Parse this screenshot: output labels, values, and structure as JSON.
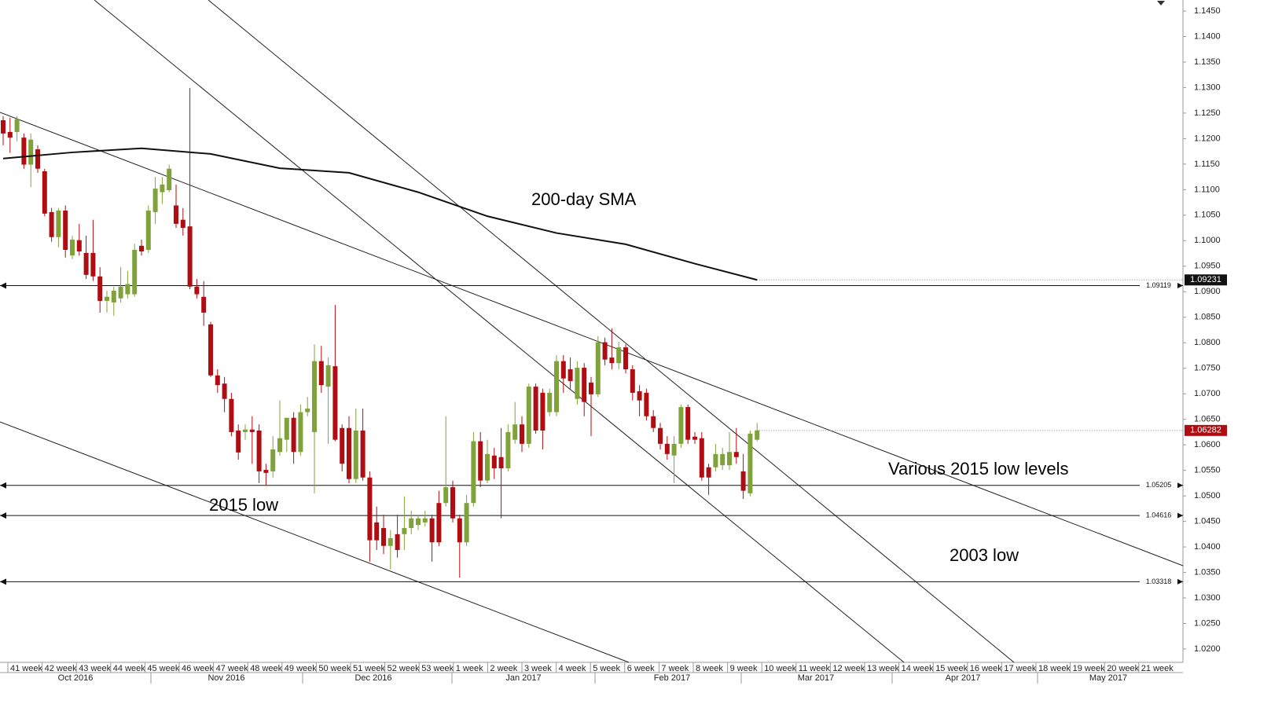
{
  "chart_data": {
    "type": "candlestick",
    "up_color": "#7fa33a",
    "down_color": "#b00d12",
    "open": [
      1.1236,
      1.1213,
      1.1213,
      1.1202,
      1.1149,
      1.1179,
      1.1136,
      1.1056,
      1.1007,
      1.1059,
      1.0971,
      1.1001,
      1.0976,
      1.0976,
      1.093,
      1.0882,
      1.0879,
      1.0887,
      1.0895,
      1.0895,
      1.099,
      1.0982,
      1.1056,
      1.1095,
      1.1099,
      1.1069,
      1.1041,
      1.1028,
      1.091,
      1.089,
      1.0836,
      1.0736,
      1.072,
      1.069,
      1.0628,
      1.0625,
      1.063,
      1.0628,
      1.0551,
      1.0548,
      1.0586,
      1.061,
      1.0653,
      1.0586,
      1.0664,
      1.0625,
      1.0764,
      1.0714,
      1.0754,
      1.0633,
      1.0633,
      1.0533,
      1.0628,
      1.0536,
      1.0448,
      1.0437,
      1.0402,
      1.0425,
      1.0425,
      1.0437,
      1.0443,
      1.0448,
      1.0456,
      1.0486,
      1.0486,
      1.0517,
      1.0456,
      1.0409,
      1.0486,
      1.0607,
      1.053,
      1.0579,
      1.0576,
      1.0554,
      1.061,
      1.064,
      1.0602,
      1.0714,
      1.0702,
      1.0664,
      1.0664,
      1.0764,
      1.0748,
      1.069,
      1.0751,
      1.0722,
      1.0699,
      1.0801,
      1.0771,
      1.076,
      1.0791,
      1.0748,
      1.0705,
      1.0702,
      1.0656,
      1.0633,
      1.0602,
      1.0579,
      1.0602,
      1.0674,
      1.0616,
      1.0613,
      1.0556,
      1.0556,
      1.056,
      1.056,
      1.0586,
      1.0548,
      1.0505,
      1.061
    ],
    "high": [
      1.1244,
      1.1241,
      1.1244,
      1.121,
      1.121,
      1.1187,
      1.1141,
      1.1064,
      1.1064,
      1.1069,
      1.101,
      1.1033,
      1.101,
      1.1041,
      1.0948,
      1.0902,
      1.091,
      1.0948,
      1.0941,
      1.0994,
      1.1002,
      1.1069,
      1.1125,
      1.1125,
      1.1149,
      1.111,
      1.1064,
      1.1299,
      1.0925,
      1.0921,
      1.0841,
      1.0748,
      1.0733,
      1.0702,
      1.064,
      1.064,
      1.0656,
      1.064,
      1.0563,
      1.0617,
      1.0687,
      1.0653,
      1.0664,
      1.0679,
      1.0694,
      1.0797,
      1.0794,
      1.0771,
      1.0874,
      1.064,
      1.0656,
      1.0671,
      1.0671,
      1.0548,
      1.0479,
      1.0463,
      1.0433,
      1.0463,
      1.0499,
      1.0471,
      1.0463,
      1.0471,
      1.0463,
      1.051,
      1.0656,
      1.053,
      1.0463,
      1.0502,
      1.0625,
      1.0625,
      1.061,
      1.0594,
      1.0633,
      1.064,
      1.0684,
      1.0656,
      1.072,
      1.072,
      1.071,
      1.071,
      1.0776,
      1.0776,
      1.0771,
      1.0764,
      1.076,
      1.0733,
      1.0813,
      1.081,
      1.0828,
      1.0802,
      1.0797,
      1.0756,
      1.0717,
      1.071,
      1.0668,
      1.0643,
      1.0617,
      1.0617,
      1.0679,
      1.0679,
      1.0625,
      1.0625,
      1.0563,
      1.0602,
      1.0594,
      1.0625,
      1.0633,
      1.0582,
      1.0628,
      1.0643
    ],
    "low": [
      1.1187,
      1.1172,
      1.1195,
      1.1141,
      1.1105,
      1.1133,
      1.1048,
      1.0998,
      1.0987,
      1.0967,
      1.0964,
      1.0971,
      1.0925,
      1.0921,
      1.0859,
      1.0859,
      1.0853,
      1.0879,
      1.0887,
      1.089,
      1.0971,
      1.0976,
      1.1033,
      1.1072,
      1.1095,
      1.1025,
      1.101,
      1.0905,
      1.0887,
      1.0833,
      1.0733,
      1.0702,
      1.0664,
      1.0617,
      1.0571,
      1.061,
      1.0563,
      1.0525,
      1.052,
      1.0536,
      1.0579,
      1.0586,
      1.0563,
      1.0579,
      1.0656,
      1.0505,
      1.0702,
      1.0602,
      1.0607,
      1.0548,
      1.0525,
      1.0525,
      1.053,
      1.0371,
      1.0394,
      1.0386,
      1.0356,
      1.0379,
      1.0394,
      1.0425,
      1.0433,
      1.044,
      1.0371,
      1.0402,
      1.0479,
      1.0448,
      1.034,
      1.0402,
      1.0479,
      1.0517,
      1.0525,
      1.0533,
      1.0456,
      1.0548,
      1.0602,
      1.0586,
      1.0594,
      1.0622,
      1.0591,
      1.0656,
      1.0656,
      1.0702,
      1.071,
      1.0679,
      1.0656,
      1.0617,
      1.0694,
      1.0756,
      1.0748,
      1.0748,
      1.074,
      1.0687,
      1.0656,
      1.0648,
      1.0625,
      1.0591,
      1.0571,
      1.0525,
      1.0594,
      1.0602,
      1.0602,
      1.053,
      1.0502,
      1.0548,
      1.0551,
      1.0551,
      1.0563,
      1.0494,
      1.0499,
      1.0607
    ],
    "close": [
      1.121,
      1.1202,
      1.1238,
      1.1149,
      1.1198,
      1.1141,
      1.1053,
      1.1007,
      1.1059,
      1.0982,
      1.1002,
      1.0979,
      1.0933,
      1.093,
      1.0882,
      1.089,
      1.0902,
      1.091,
      1.0915,
      1.0982,
      1.0979,
      1.1059,
      1.1102,
      1.111,
      1.1141,
      1.1033,
      1.1025,
      1.091,
      1.0895,
      1.0859,
      1.0736,
      1.0717,
      1.069,
      1.0625,
      1.0585,
      1.063,
      1.0625,
      1.0548,
      1.0545,
      1.0591,
      1.0613,
      1.0653,
      1.0586,
      1.0664,
      1.0671,
      1.0764,
      1.0717,
      1.0756,
      1.061,
      1.0563,
      1.0533,
      1.0628,
      1.0536,
      1.0413,
      1.0413,
      1.0402,
      1.0417,
      1.0394,
      1.0437,
      1.0456,
      1.0456,
      1.0456,
      1.0409,
      1.0409,
      1.0517,
      1.0456,
      1.0409,
      1.0486,
      1.0607,
      1.053,
      1.0582,
      1.0554,
      1.0554,
      1.0625,
      1.064,
      1.0602,
      1.0714,
      1.0628,
      1.0628,
      1.0702,
      1.0764,
      1.073,
      1.0725,
      1.0751,
      1.0684,
      1.0699,
      1.0801,
      1.0767,
      1.076,
      1.0791,
      1.0748,
      1.0702,
      1.0687,
      1.0656,
      1.0633,
      1.0602,
      1.0582,
      1.0602,
      1.0674,
      1.061,
      1.061,
      1.0536,
      1.0536,
      1.0582,
      1.0582,
      1.0586,
      1.0576,
      1.051,
      1.0622,
      1.06282
    ],
    "sma": {
      "x": [
        0,
        10,
        20,
        30,
        40,
        50,
        60,
        70,
        80,
        90,
        100,
        109
      ],
      "values": [
        1.1161,
        1.1173,
        1.1181,
        1.117,
        1.1142,
        1.1133,
        1.1095,
        1.1048,
        1.1015,
        1.0993,
        1.0955,
        1.09231
      ],
      "color": "#111111"
    },
    "levels": [
      1.09119,
      1.05205,
      1.04616,
      1.03318
    ],
    "annotations": [
      "200-day SMA",
      "Various 2015 low levels",
      "2015 low",
      "2003 low"
    ],
    "ylim": [
      1.02,
      1.145
    ],
    "yticks": [
      {
        "value": 1.02,
        "label": "1.0200"
      },
      {
        "value": 1.025,
        "label": "1.0250"
      },
      {
        "value": 1.03,
        "label": "1.0300"
      },
      {
        "value": 1.035,
        "label": "1.0350"
      },
      {
        "value": 1.04,
        "label": "1.0400"
      },
      {
        "value": 1.045,
        "label": "1.0450"
      },
      {
        "value": 1.05,
        "label": "1.0500"
      },
      {
        "value": 1.055,
        "label": "1.0550"
      },
      {
        "value": 1.06,
        "label": "1.0600"
      },
      {
        "value": 1.065,
        "label": "1.0650"
      },
      {
        "value": 1.07,
        "label": "1.0700"
      },
      {
        "value": 1.075,
        "label": "1.0750"
      },
      {
        "value": 1.08,
        "label": "1.0800"
      },
      {
        "value": 1.085,
        "label": "1.0850"
      },
      {
        "value": 1.09,
        "label": "1.0900"
      },
      {
        "value": 1.095,
        "label": "1.0950"
      },
      {
        "value": 1.1,
        "label": "1.1000"
      },
      {
        "value": 1.105,
        "label": "1.1050"
      },
      {
        "value": 1.11,
        "label": "1.1100"
      },
      {
        "value": 1.115,
        "label": "1.1150"
      },
      {
        "value": 1.12,
        "label": "1.1200"
      },
      {
        "value": 1.125,
        "label": "1.1250"
      },
      {
        "value": 1.13,
        "label": "1.1300"
      },
      {
        "value": 1.135,
        "label": "1.1350"
      },
      {
        "value": 1.14,
        "label": "1.1400"
      },
      {
        "value": 1.145,
        "label": "1.1450"
      }
    ],
    "weeks": [
      "41 week",
      "42 week",
      "43 week",
      "44 week",
      "45 week",
      "46 week",
      "47 week",
      "48 week",
      "49 week",
      "50 week",
      "51 week",
      "52 week",
      "53 week",
      "1 week",
      "2 week",
      "3 week",
      "4 week",
      "5 week",
      "6 week",
      "7 week",
      "8 week",
      "9 week",
      "10 week",
      "11 week",
      "12 week",
      "13 week",
      "14 week",
      "15 week",
      "16 week",
      "17 week",
      "18 week",
      "19 week",
      "20 week",
      "21 week"
    ],
    "months": [
      "Oct 2016",
      "Nov 2016",
      "Dec 2016",
      "Jan 2017",
      "Feb 2017",
      "Mar 2017",
      "Apr 2017",
      "May 2017"
    ]
  }
}
